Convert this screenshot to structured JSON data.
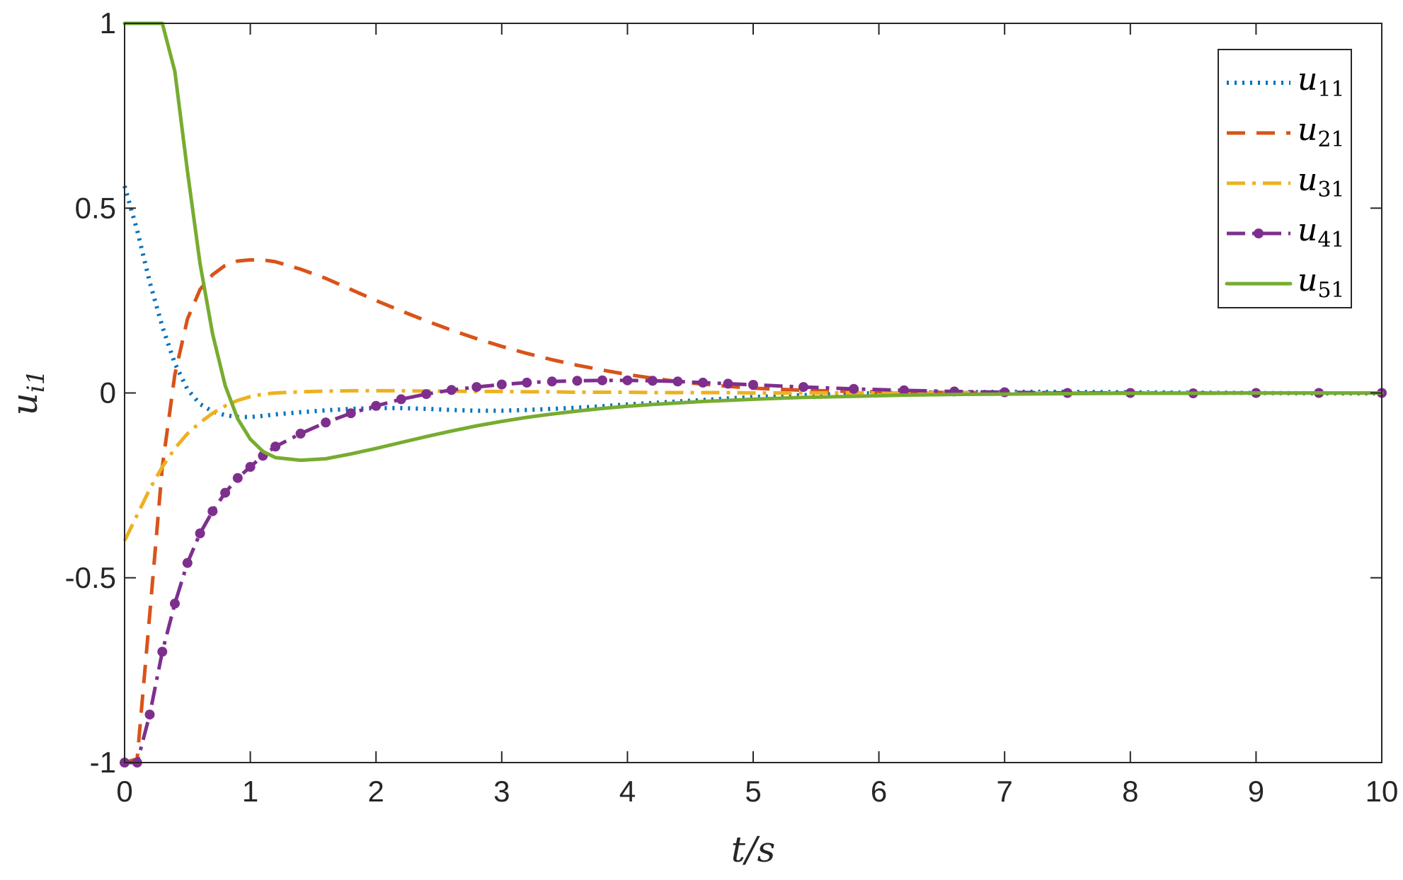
{
  "chart_data": {
    "type": "line",
    "xlabel": "t/s",
    "ylabel": "u_{i1}",
    "xlim": [
      0,
      10
    ],
    "ylim": [
      -1,
      1
    ],
    "xticks": [
      "0",
      "1",
      "2",
      "3",
      "4",
      "5",
      "6",
      "7",
      "8",
      "9",
      "10"
    ],
    "yticks": [
      "-1",
      "-0.5",
      "0",
      "0.5",
      "1"
    ],
    "grid": false,
    "legend_position": "top-right",
    "x": [
      0,
      0.1,
      0.2,
      0.3,
      0.4,
      0.5,
      0.6,
      0.7,
      0.8,
      0.9,
      1.0,
      1.1,
      1.2,
      1.4,
      1.6,
      1.8,
      2.0,
      2.2,
      2.4,
      2.6,
      2.8,
      3.0,
      3.2,
      3.4,
      3.6,
      3.8,
      4.0,
      4.2,
      4.4,
      4.6,
      4.8,
      5.0,
      5.4,
      5.8,
      6.2,
      6.6,
      7.0,
      7.5,
      8.0,
      8.5,
      9.0,
      9.5,
      10.0
    ],
    "series": [
      {
        "name": "u11",
        "label_main": "u",
        "label_sub": "11",
        "color": "#0072BD",
        "style": "dotted",
        "values": [
          0.56,
          0.44,
          0.3,
          0.18,
          0.08,
          0.01,
          -0.03,
          -0.05,
          -0.06,
          -0.065,
          -0.065,
          -0.062,
          -0.058,
          -0.052,
          -0.047,
          -0.043,
          -0.041,
          -0.041,
          -0.043,
          -0.046,
          -0.048,
          -0.048,
          -0.046,
          -0.043,
          -0.04,
          -0.036,
          -0.031,
          -0.027,
          -0.023,
          -0.019,
          -0.015,
          -0.011,
          -0.006,
          -0.002,
          0.001,
          0.002,
          0.003,
          0.003,
          0.002,
          0.001,
          0.0,
          -0.001,
          -0.001
        ]
      },
      {
        "name": "u21",
        "label_main": "u",
        "label_sub": "21",
        "color": "#D95319",
        "style": "dashed",
        "values": [
          -1.0,
          -0.99,
          -0.6,
          -0.2,
          0.05,
          0.2,
          0.28,
          0.32,
          0.345,
          0.357,
          0.36,
          0.36,
          0.355,
          0.335,
          0.31,
          0.28,
          0.25,
          0.222,
          0.195,
          0.17,
          0.147,
          0.126,
          0.107,
          0.09,
          0.075,
          0.062,
          0.05,
          0.04,
          0.031,
          0.024,
          0.018,
          0.013,
          0.007,
          0.004,
          0.002,
          0.001,
          0.0,
          0.0,
          0.0,
          0.0,
          0.0,
          0.0,
          0.0
        ]
      },
      {
        "name": "u31",
        "label_main": "u",
        "label_sub": "31",
        "color": "#EDB120",
        "style": "dashdot",
        "values": [
          -0.4,
          -0.33,
          -0.26,
          -0.2,
          -0.15,
          -0.11,
          -0.08,
          -0.055,
          -0.035,
          -0.02,
          -0.01,
          -0.003,
          0.0,
          0.003,
          0.005,
          0.006,
          0.006,
          0.006,
          0.005,
          0.005,
          0.004,
          0.004,
          0.003,
          0.003,
          0.002,
          0.002,
          0.002,
          0.001,
          0.001,
          0.001,
          0.001,
          0.0,
          0.0,
          0.0,
          0.0,
          0.0,
          0.0,
          0.0,
          0.0,
          0.0,
          0.0,
          0.0,
          0.0
        ]
      },
      {
        "name": "u41",
        "label_main": "u",
        "label_sub": "41",
        "color": "#7E2F8E",
        "style": "dashdot-markers",
        "values": [
          -1.0,
          -1.0,
          -0.87,
          -0.7,
          -0.57,
          -0.46,
          -0.38,
          -0.32,
          -0.27,
          -0.23,
          -0.2,
          -0.17,
          -0.145,
          -0.11,
          -0.08,
          -0.055,
          -0.035,
          -0.017,
          -0.003,
          0.008,
          0.016,
          0.023,
          0.028,
          0.031,
          0.033,
          0.034,
          0.034,
          0.033,
          0.031,
          0.028,
          0.025,
          0.022,
          0.016,
          0.011,
          0.007,
          0.004,
          0.002,
          0.0,
          0.0,
          -0.001,
          0.0,
          0.0,
          0.0
        ]
      },
      {
        "name": "u51",
        "label_main": "u",
        "label_sub": "51",
        "color": "#77AC30",
        "style": "solid",
        "values": [
          1.0,
          1.0,
          1.0,
          1.0,
          0.87,
          0.6,
          0.35,
          0.16,
          0.02,
          -0.07,
          -0.125,
          -0.158,
          -0.175,
          -0.182,
          -0.178,
          -0.165,
          -0.15,
          -0.134,
          -0.118,
          -0.103,
          -0.089,
          -0.077,
          -0.066,
          -0.057,
          -0.049,
          -0.042,
          -0.036,
          -0.031,
          -0.027,
          -0.023,
          -0.02,
          -0.017,
          -0.012,
          -0.009,
          -0.006,
          -0.004,
          -0.003,
          -0.002,
          -0.001,
          -0.001,
          0.0,
          0.0,
          0.0
        ]
      }
    ]
  }
}
